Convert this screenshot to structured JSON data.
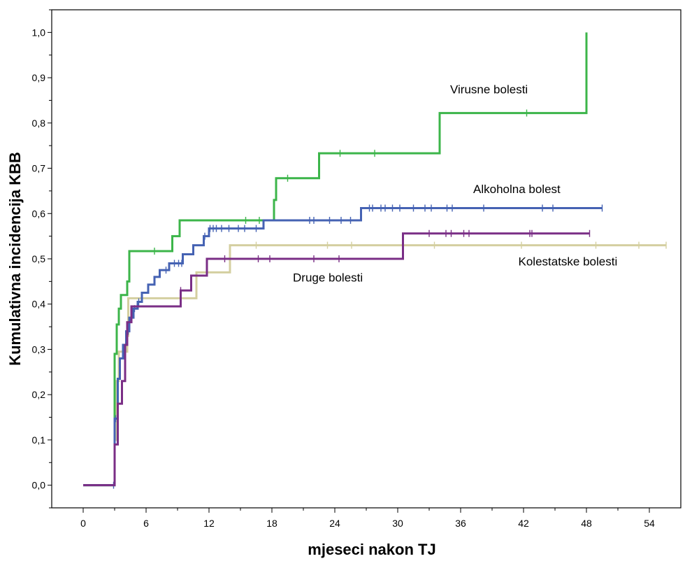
{
  "chart_data": {
    "type": "line",
    "title": "",
    "xlabel": "mjeseci nakon TJ",
    "ylabel": "Kumulativna incidencija KBB",
    "xlim": [
      -3,
      57
    ],
    "ylim": [
      -0.05,
      1.05
    ],
    "x_ticks": [
      0,
      6,
      12,
      18,
      24,
      30,
      36,
      42,
      48,
      54
    ],
    "x_tick_labels": [
      "0",
      "6",
      "12",
      "18",
      "24",
      "30",
      "36",
      "42",
      "48",
      "54"
    ],
    "y_ticks": [
      0,
      0.1,
      0.2,
      0.3,
      0.4,
      0.5,
      0.6,
      0.7,
      0.8,
      0.9,
      1.0
    ],
    "y_tick_labels": [
      "0,0",
      "0,1",
      "0,2",
      "0,3",
      "0,4",
      "0,5",
      "0,6",
      "0,7",
      "0,8",
      "0,9",
      "1,0"
    ],
    "grid": false,
    "legend": "none",
    "series": [
      {
        "name": "Virusne bolesti",
        "color": "#3cb54a",
        "x": [
          0,
          3,
          3,
          3.2,
          3.4,
          3.6,
          3.8,
          4.2,
          4.4,
          8.5,
          9.2,
          18.2,
          18.4,
          22.5,
          34.0,
          48.0
        ],
        "y": [
          0,
          0,
          0.29,
          0.355,
          0.39,
          0.42,
          0.42,
          0.45,
          0.517,
          0.55,
          0.585,
          0.63,
          0.678,
          0.733,
          0.822,
          1.0
        ],
        "censor_x": [
          6.8,
          15.5,
          16.8,
          19.5,
          24.5,
          27.8,
          42.3
        ],
        "label": "Virusne bolesti"
      },
      {
        "name": "Alkoholna bolest",
        "color": "#4562b3",
        "x": [
          0,
          3,
          3,
          3.3,
          3.5,
          3.8,
          4.1,
          4.4,
          4.8,
          5.2,
          5.6,
          6.2,
          6.8,
          7.3,
          8.2,
          9.5,
          10.5,
          11.5,
          12.0,
          17.2,
          26.5
        ],
        "y": [
          0,
          0,
          0.147,
          0.235,
          0.28,
          0.31,
          0.34,
          0.37,
          0.39,
          0.405,
          0.425,
          0.443,
          0.46,
          0.475,
          0.49,
          0.51,
          0.53,
          0.55,
          0.567,
          0.585,
          0.612
        ],
        "censor_x": [
          2.9,
          3.1,
          4.3,
          4.9,
          5.3,
          7.9,
          8.7,
          9.1,
          9.4,
          11.6,
          12.1,
          12.4,
          12.7,
          13.2,
          13.9,
          14.8,
          15.4,
          16.5,
          21.6,
          22.0,
          23.5,
          24.6,
          25.5,
          27.3,
          27.6,
          28.4,
          28.8,
          29.5,
          30.2,
          31.5,
          32.6,
          33.2,
          34.7,
          35.2,
          38.2,
          43.8,
          44.8,
          49.5
        ],
        "label": "Alkoholna bolest"
      },
      {
        "name": "Kolestatske bolesti",
        "color": "#d4cfa0",
        "x": [
          0,
          3,
          3,
          3.1,
          3.4,
          4.2,
          4.3,
          10.8,
          14.0
        ],
        "y": [
          0,
          0,
          0.1,
          0.23,
          0.295,
          0.33,
          0.413,
          0.47,
          0.53
        ],
        "censor_x": [
          16.5,
          23.3,
          25.6,
          33.5,
          41.8,
          48.9,
          53.0,
          55.6
        ],
        "label": "Kolestatske bolesti"
      },
      {
        "name": "Druge bolesti",
        "color": "#7a2e86",
        "x": [
          0,
          3,
          3,
          3.3,
          3.7,
          4.0,
          4.2,
          4.6,
          9.3,
          10.3,
          11.8,
          30.5
        ],
        "y": [
          0,
          0,
          0.09,
          0.18,
          0.23,
          0.31,
          0.36,
          0.395,
          0.43,
          0.463,
          0.5,
          0.556
        ],
        "censor_x": [
          9.3,
          13.5,
          16.7,
          17.8,
          22.0,
          24.4,
          33.0,
          34.6,
          35.1,
          36.3,
          36.8,
          42.6,
          42.8,
          48.3
        ],
        "label": "Druge bolesti"
      }
    ],
    "annotations": [
      {
        "text": "Virusne bolesti",
        "x": 35,
        "y": 0.865,
        "series": 0
      },
      {
        "text": "Alkoholna bolest",
        "x": 37.2,
        "y": 0.645,
        "series": 1
      },
      {
        "text": "Kolestatske bolesti",
        "x": 41.5,
        "y": 0.485,
        "series": 2
      },
      {
        "text": "Druge bolesti",
        "x": 20,
        "y": 0.45,
        "series": 3
      }
    ]
  }
}
